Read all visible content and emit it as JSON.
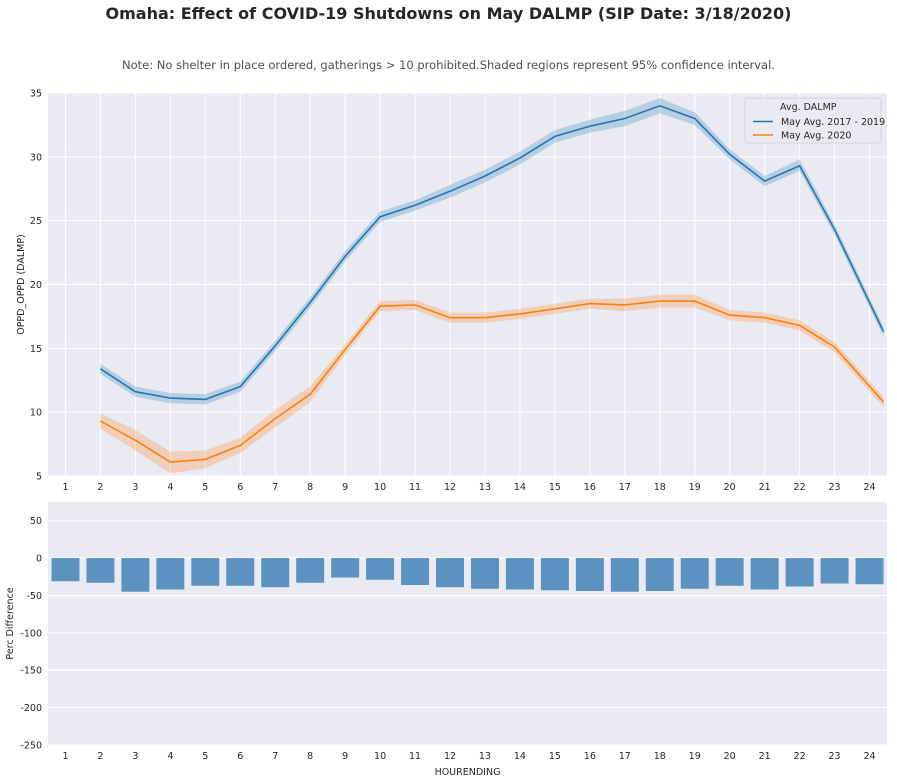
{
  "title": "Omaha: Effect of COVID-19 Shutdowns on May DALMP (SIP Date: 3/18/2020)",
  "subtitle": "Note: No shelter in place ordered, gatherings > 10 prohibited.Shaded regions represent 95% confidence interval.",
  "colors": {
    "background": "#eaeaf2",
    "grid": "#ffffff",
    "series_2017_2019": "#1f77b4",
    "series_2020": "#ff7f0e",
    "bars": "#5b92c0"
  },
  "chart_data": [
    {
      "type": "line",
      "ylabel": "OPPD_OPPD (DALMP)",
      "xlabel": "",
      "ylim": [
        5,
        35
      ],
      "yticks": [
        5,
        10,
        15,
        20,
        25,
        30,
        35
      ],
      "x": [
        1,
        2,
        3,
        4,
        5,
        6,
        7,
        8,
        9,
        10,
        11,
        12,
        13,
        14,
        15,
        16,
        17,
        18,
        19,
        20,
        21,
        22,
        23,
        24
      ],
      "xticks": [
        "1",
        "2",
        "3",
        "4",
        "5",
        "6",
        "7",
        "8",
        "9",
        "10",
        "11",
        "12",
        "13",
        "14",
        "15",
        "16",
        "17",
        "18",
        "19",
        "20",
        "21",
        "22",
        "23",
        "24"
      ],
      "grid": true,
      "legend": {
        "title": "Avg. DALMP",
        "placement": "top-right"
      },
      "series": [
        {
          "name": "May Avg. 2017 - 2019",
          "x": [
            2,
            3,
            4,
            5,
            6,
            7,
            8,
            9,
            10,
            11,
            12,
            13,
            14,
            15,
            16,
            17,
            18,
            19,
            20,
            21,
            22,
            23,
            24.4
          ],
          "values": [
            13.4,
            11.6,
            11.1,
            11.0,
            12.0,
            15.2,
            18.6,
            22.2,
            25.3,
            26.2,
            27.3,
            28.5,
            29.9,
            31.6,
            32.4,
            33.0,
            34.0,
            33.0,
            30.2,
            28.1,
            29.3,
            24.3,
            16.3
          ],
          "ci_lower": [
            13.0,
            11.2,
            10.7,
            10.6,
            11.6,
            14.8,
            18.2,
            21.8,
            24.9,
            25.8,
            26.8,
            28.0,
            29.4,
            31.1,
            31.9,
            32.4,
            33.4,
            32.5,
            29.8,
            27.7,
            28.9,
            23.9,
            15.9
          ],
          "ci_upper": [
            13.8,
            12.0,
            11.5,
            11.4,
            12.4,
            15.6,
            19.0,
            22.6,
            25.7,
            26.6,
            27.8,
            29.0,
            30.4,
            32.1,
            32.9,
            33.6,
            34.6,
            33.5,
            30.6,
            28.5,
            29.8,
            24.7,
            16.7
          ]
        },
        {
          "name": "May Avg. 2020",
          "x": [
            2,
            3,
            4,
            5,
            6,
            7,
            8,
            9,
            10,
            11,
            12,
            13,
            14,
            15,
            16,
            17,
            18,
            19,
            20,
            21,
            22,
            23,
            24.4
          ],
          "values": [
            9.3,
            7.8,
            6.1,
            6.3,
            7.4,
            9.5,
            11.4,
            14.9,
            18.3,
            18.4,
            17.4,
            17.4,
            17.7,
            18.1,
            18.5,
            18.4,
            18.7,
            18.7,
            17.6,
            17.4,
            16.8,
            15.1,
            10.8
          ],
          "ci_lower": [
            8.7,
            7.0,
            5.2,
            5.6,
            6.8,
            8.8,
            10.8,
            14.5,
            17.9,
            18.0,
            17.0,
            17.0,
            17.3,
            17.7,
            18.1,
            17.9,
            18.2,
            18.2,
            17.2,
            17.0,
            16.4,
            14.7,
            10.4
          ],
          "ci_upper": [
            9.9,
            8.6,
            6.9,
            7.0,
            8.0,
            10.2,
            12.0,
            15.3,
            18.7,
            18.8,
            17.8,
            17.8,
            18.1,
            18.5,
            18.9,
            18.9,
            19.2,
            19.2,
            18.0,
            17.8,
            17.2,
            15.5,
            11.2
          ]
        }
      ]
    },
    {
      "type": "bar",
      "ylabel": "Perc Difference",
      "xlabel": "HOURENDING",
      "ylim": [
        -250,
        75
      ],
      "yticks": [
        -250,
        -200,
        -150,
        -100,
        -50,
        0,
        50
      ],
      "grid": true,
      "categories": [
        "1",
        "2",
        "3",
        "4",
        "5",
        "6",
        "7",
        "8",
        "9",
        "10",
        "11",
        "12",
        "13",
        "14",
        "15",
        "16",
        "17",
        "18",
        "19",
        "20",
        "21",
        "22",
        "23",
        "24"
      ],
      "values": [
        -31,
        -33,
        -45,
        -42,
        -37,
        -37,
        -39,
        -33,
        -26,
        -29,
        -36,
        -39,
        -41,
        -42,
        -43,
        -44,
        -45,
        -44,
        -41,
        -37,
        -42,
        -38,
        -34,
        -35
      ]
    }
  ]
}
